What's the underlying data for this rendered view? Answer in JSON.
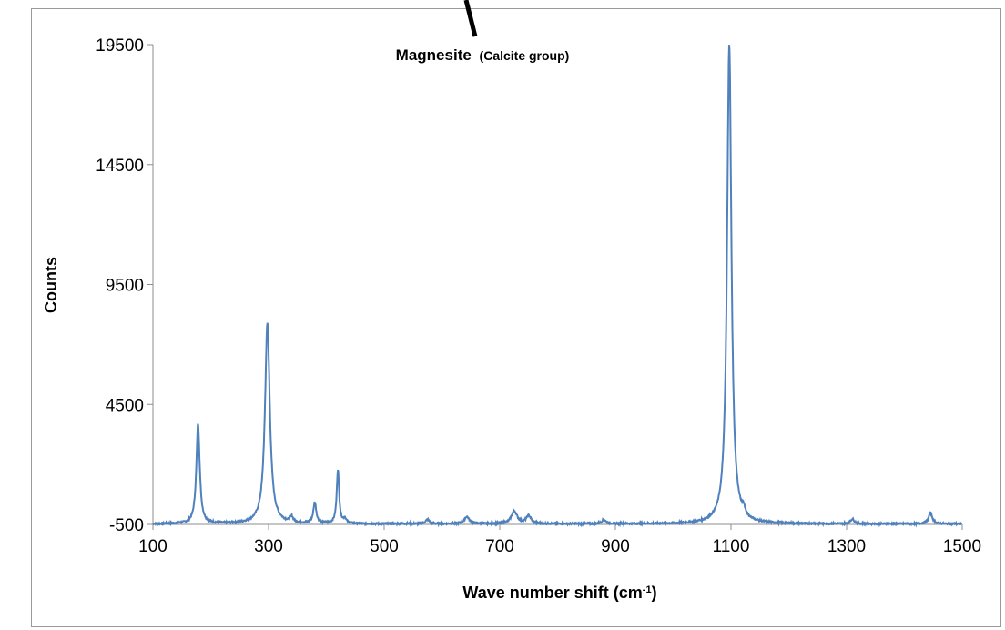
{
  "chart_data": {
    "type": "line",
    "title": "Magnesite",
    "title_suffix": "(Calcite group)",
    "xlabel_main": "Wave number shift (cm",
    "xlabel_sup": "-1",
    "xlabel_end": ")",
    "ylabel": "Counts",
    "xlim": [
      100,
      1500
    ],
    "ylim": [
      -500,
      19500
    ],
    "x_ticks": [
      "100",
      "300",
      "500",
      "700",
      "900",
      "1100",
      "1300",
      "1500"
    ],
    "y_ticks": [
      "-500",
      "4500",
      "9500",
      "14500",
      "19500"
    ],
    "series_color": "#4f81bd",
    "baseline": -480,
    "peaks": [
      {
        "x": 178,
        "y": 3680,
        "width": 3.5
      },
      {
        "x": 298,
        "y": 7900,
        "width": 5
      },
      {
        "x": 340,
        "y": -250,
        "width": 3
      },
      {
        "x": 380,
        "y": 400,
        "width": 3
      },
      {
        "x": 420,
        "y": 1780,
        "width": 2.5
      },
      {
        "x": 432,
        "y": -300,
        "width": 3
      },
      {
        "x": 575,
        "y": -300,
        "width": 4
      },
      {
        "x": 643,
        "y": -180,
        "width": 5
      },
      {
        "x": 725,
        "y": 50,
        "width": 6
      },
      {
        "x": 750,
        "y": -150,
        "width": 5
      },
      {
        "x": 880,
        "y": -300,
        "width": 4
      },
      {
        "x": 1097,
        "y": 19550,
        "width": 4.5
      },
      {
        "x": 1122,
        "y": -200,
        "width": 3
      },
      {
        "x": 1310,
        "y": -280,
        "width": 4
      },
      {
        "x": 1445,
        "y": -30,
        "width": 4
      }
    ]
  }
}
